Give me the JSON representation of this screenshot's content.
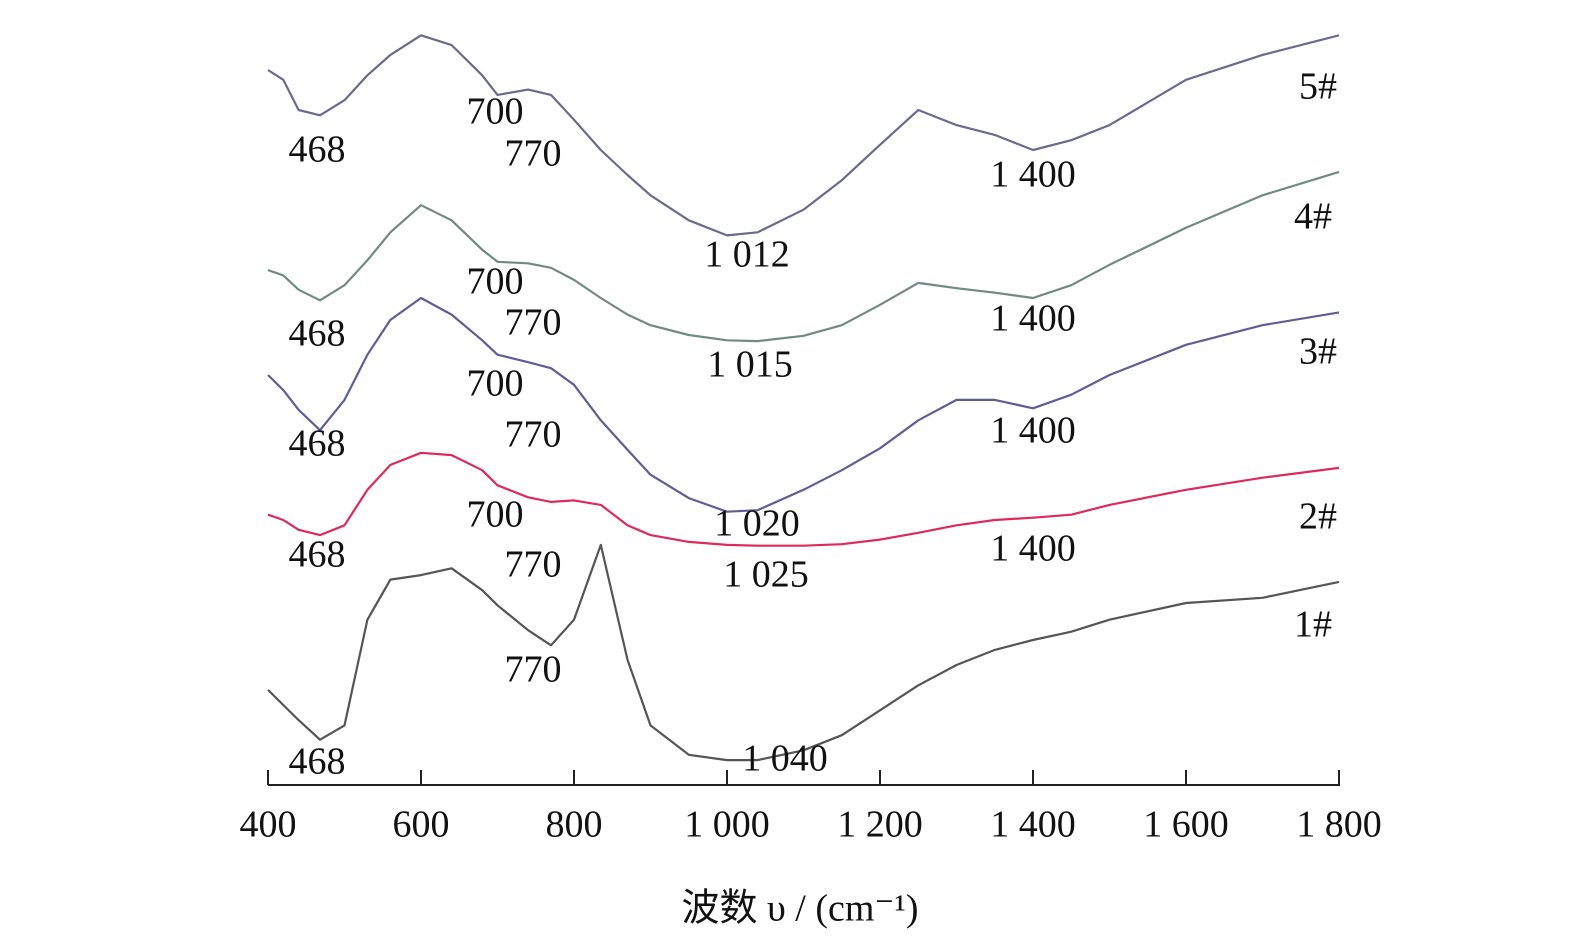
{
  "chart_data": {
    "type": "line",
    "x_label": "波数 υ / (cm⁻¹)",
    "xlim": [
      400,
      1800
    ],
    "ylim": [
      0,
      100
    ],
    "xticks": [
      400,
      600,
      800,
      {
        "value": 1000,
        "label": "1 000"
      },
      {
        "value": 1200,
        "label": "1 200"
      },
      {
        "value": 1400,
        "label": "1 400"
      },
      {
        "value": 1600,
        "label": "1 600"
      },
      {
        "value": 1800,
        "label": "1 800"
      }
    ],
    "x": [
      400,
      420,
      440,
      468,
      500,
      530,
      560,
      600,
      640,
      680,
      700,
      740,
      770,
      800,
      835,
      870,
      900,
      950,
      1000,
      1040,
      1100,
      1150,
      1200,
      1250,
      1300,
      1350,
      1400,
      1450,
      1500,
      1600,
      1700,
      1800
    ],
    "series": [
      {
        "name": "1#",
        "color": "#555555",
        "annotations": [
          "468",
          "770",
          "1 040"
        ],
        "values": [
          12.6,
          10.6,
          8.6,
          6.0,
          7.9,
          21.9,
          27.2,
          27.8,
          28.7,
          25.8,
          23.8,
          20.5,
          18.5,
          21.9,
          31.8,
          16.6,
          7.9,
          4.0,
          3.3,
          3.3,
          4.6,
          6.6,
          9.9,
          13.2,
          15.9,
          17.9,
          19.2,
          20.3,
          21.9,
          24.1,
          24.8,
          26.9
        ]
      },
      {
        "name": "2#",
        "color": "#dd2a5a",
        "annotations": [
          "468",
          "700",
          "770",
          "1 025",
          "1 400"
        ],
        "values": [
          35.8,
          35.1,
          33.8,
          33.1,
          34.4,
          39.1,
          42.4,
          44.0,
          43.7,
          41.7,
          39.7,
          38.1,
          37.5,
          37.7,
          37.1,
          34.4,
          33.1,
          32.2,
          31.8,
          31.7,
          31.7,
          31.9,
          32.5,
          33.4,
          34.4,
          35.1,
          35.4,
          35.8,
          37.1,
          39.1,
          40.7,
          42.0
        ]
      },
      {
        "name": "3#",
        "color": "#5e5e96",
        "annotations": [
          "468",
          "700",
          "770",
          "1 020",
          "1 400"
        ],
        "values": [
          54.3,
          52.3,
          49.7,
          47.0,
          51.0,
          57.0,
          61.6,
          64.5,
          62.3,
          58.9,
          57.0,
          56.0,
          55.2,
          53.0,
          48.3,
          44.4,
          41.1,
          38.0,
          36.2,
          36.4,
          39.1,
          41.7,
          44.6,
          48.3,
          51.0,
          51.0,
          49.9,
          51.7,
          54.3,
          58.3,
          60.9,
          62.6
        ]
      },
      {
        "name": "4#",
        "color": "#6f8a84",
        "annotations": [
          "468",
          "700",
          "770",
          "1 015",
          "1 400"
        ],
        "values": [
          68.2,
          67.5,
          65.6,
          64.2,
          66.2,
          69.5,
          73.2,
          76.8,
          74.8,
          70.9,
          69.3,
          69.1,
          68.5,
          66.9,
          64.5,
          62.3,
          60.9,
          59.6,
          58.9,
          58.8,
          59.5,
          60.9,
          63.6,
          66.5,
          65.8,
          65.2,
          64.5,
          66.2,
          68.9,
          73.8,
          78.1,
          81.2
        ]
      },
      {
        "name": "5#",
        "color": "#6a6a8e",
        "annotations": [
          "468",
          "700",
          "770",
          "1 012",
          "1 400"
        ],
        "values": [
          94.7,
          93.4,
          89.4,
          88.7,
          90.7,
          94.0,
          96.7,
          99.3,
          98.0,
          94.0,
          91.4,
          92.1,
          91.4,
          88.1,
          84.1,
          80.8,
          78.1,
          74.8,
          72.8,
          73.2,
          76.2,
          80.1,
          84.8,
          89.4,
          87.4,
          86.1,
          84.1,
          85.4,
          87.4,
          93.4,
          96.7,
          99.3
        ]
      }
    ]
  }
}
